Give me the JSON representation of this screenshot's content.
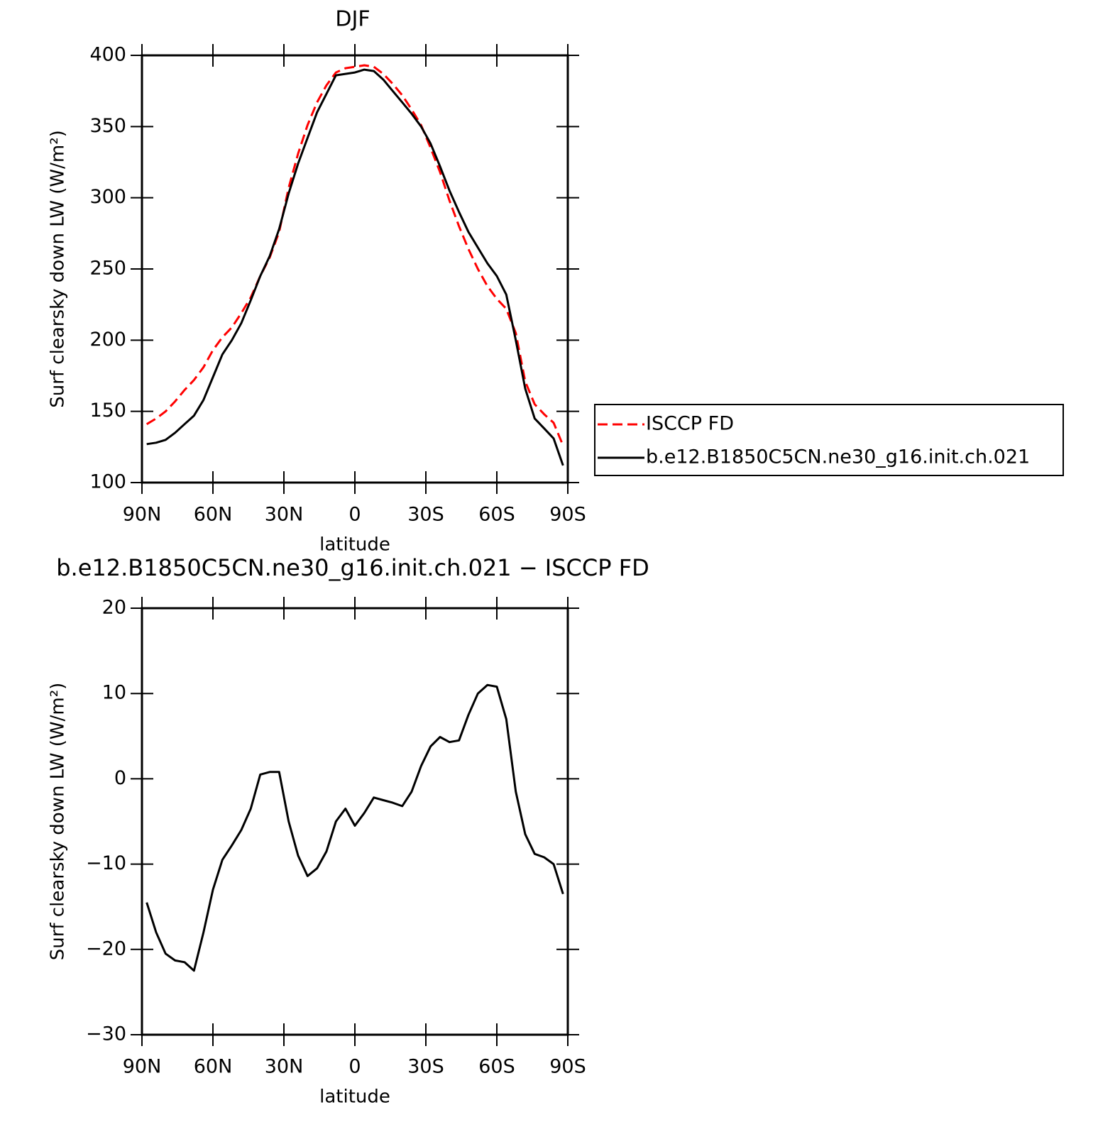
{
  "chart_data": [
    {
      "type": "line",
      "title": "DJF",
      "xlabel": "latitude",
      "ylabel": "Surf clearsky down LW (W/m²)",
      "x": [
        88,
        84,
        80,
        76,
        72,
        68,
        64,
        60,
        56,
        52,
        48,
        44,
        40,
        36,
        32,
        28,
        24,
        20,
        16,
        12,
        8,
        4,
        0,
        -4,
        -8,
        -12,
        -16,
        -20,
        -24,
        -28,
        -32,
        -36,
        -40,
        -44,
        -48,
        -52,
        -56,
        -60,
        -64,
        -68,
        -72,
        -76,
        -80,
        -84,
        -88
      ],
      "xlim": [
        90,
        -90
      ],
      "xticks": [
        {
          "value": 90,
          "label": "90N"
        },
        {
          "value": 60,
          "label": "60N"
        },
        {
          "value": 30,
          "label": "30N"
        },
        0,
        {
          "value": -30,
          "label": "30S"
        },
        {
          "value": -60,
          "label": "60S"
        },
        {
          "value": -90,
          "label": "90S"
        }
      ],
      "ylim": [
        100,
        400
      ],
      "yticks": [
        100,
        150,
        200,
        250,
        300,
        350,
        400
      ],
      "legend": "right",
      "series": [
        {
          "name": "ISCCP FD",
          "color": "#ff0000",
          "dash": true,
          "values": [
            141,
            145,
            150,
            157,
            165,
            172,
            181,
            193,
            202,
            209,
            219,
            230,
            245,
            258,
            276,
            307,
            331,
            351,
            367,
            379,
            388,
            391,
            392,
            393,
            392,
            387,
            380,
            372,
            362,
            351,
            335,
            318,
            298,
            280,
            264,
            250,
            238,
            229,
            222,
            205,
            171,
            155,
            148,
            142,
            126
          ]
        },
        {
          "name": "b.e12.B1850C5CN.ne30_g16.init.ch.021",
          "color": "#000000",
          "dash": false,
          "values": [
            127,
            128,
            130,
            135,
            141,
            147,
            158,
            174,
            190,
            200,
            212,
            228,
            245,
            259,
            278,
            303,
            324,
            342,
            360,
            373,
            386,
            387,
            388,
            390,
            389,
            383,
            375,
            367,
            359,
            350,
            338,
            322,
            305,
            290,
            276,
            265,
            254,
            245,
            232,
            200,
            166,
            145,
            138,
            131,
            112
          ]
        }
      ]
    },
    {
      "type": "line",
      "title": "b.e12.B1850C5CN.ne30_g16.init.ch.021 − ISCCP FD",
      "xlabel": "latitude",
      "ylabel": "Surf clearsky down LW (W/m²)",
      "x": [
        88,
        84,
        80,
        76,
        72,
        68,
        64,
        60,
        56,
        52,
        48,
        44,
        40,
        36,
        32,
        28,
        24,
        20,
        16,
        12,
        8,
        4,
        0,
        -4,
        -8,
        -12,
        -16,
        -20,
        -24,
        -28,
        -32,
        -36,
        -40,
        -44,
        -48,
        -52,
        -56,
        -60,
        -64,
        -68,
        -72,
        -76,
        -80,
        -84,
        -88
      ],
      "xlim": [
        90,
        -90
      ],
      "xticks": [
        {
          "value": 90,
          "label": "90N"
        },
        {
          "value": 60,
          "label": "60N"
        },
        {
          "value": 30,
          "label": "30N"
        },
        0,
        {
          "value": -30,
          "label": "30S"
        },
        {
          "value": -60,
          "label": "60S"
        },
        {
          "value": -90,
          "label": "90S"
        }
      ],
      "ylim": [
        -30,
        20
      ],
      "yticks": [
        {
          "value": -30,
          "label": "−30"
        },
        {
          "value": -20,
          "label": "−20"
        },
        {
          "value": -10,
          "label": "−10"
        },
        0,
        10,
        20
      ],
      "series": [
        {
          "color": "#000000",
          "dash": false,
          "values": [
            -14.5,
            -18,
            -20.5,
            -21.3,
            -21.5,
            -22.5,
            -18,
            -13,
            -9.5,
            -7.8,
            -6,
            -3.5,
            0.5,
            0.8,
            0.8,
            -5,
            -9,
            -11.4,
            -10.5,
            -8.5,
            -5,
            -3.5,
            -5.5,
            -4,
            -2.2,
            -2.5,
            -2.8,
            -3.2,
            -1.5,
            1.5,
            3.8,
            4.9,
            4.3,
            4.5,
            7.5,
            10,
            11,
            10.8,
            7,
            -1.5,
            -6.5,
            -8.8,
            -9.2,
            -10,
            -13.5
          ]
        }
      ]
    }
  ]
}
